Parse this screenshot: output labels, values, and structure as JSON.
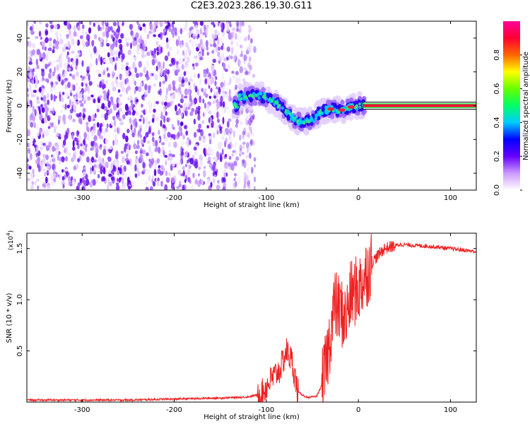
{
  "title": "C2E3.2023.286.19.30.G11",
  "chart_data": [
    {
      "type": "heatmap",
      "name": "spectrogram",
      "xlabel": "Height of straight line (km)",
      "ylabel": "Frequency (Hz)",
      "xlim": [
        -360,
        128
      ],
      "ylim": [
        -50,
        50
      ],
      "xticks": [
        -300,
        -200,
        -100,
        0,
        100
      ],
      "yticks": [
        -40,
        -20,
        0,
        20,
        40
      ],
      "noise_region_x": [
        -360,
        -120
      ],
      "signal_track": [
        {
          "x": -130,
          "y": 5
        },
        {
          "x": -110,
          "y": 6
        },
        {
          "x": -100,
          "y": 5
        },
        {
          "x": -90,
          "y": 2
        },
        {
          "x": -80,
          "y": -3
        },
        {
          "x": -70,
          "y": -8
        },
        {
          "x": -60,
          "y": -10
        },
        {
          "x": -50,
          "y": -8
        },
        {
          "x": -40,
          "y": -3
        },
        {
          "x": -30,
          "y": -2
        },
        {
          "x": -20,
          "y": -3
        },
        {
          "x": -10,
          "y": -1
        },
        {
          "x": 0,
          "y": 0
        },
        {
          "x": 128,
          "y": 0
        }
      ],
      "steady_line_x": [
        5,
        128
      ],
      "steady_line_y": 0,
      "colorbar": {
        "label": "Normalized spectral amplitude",
        "range": [
          0,
          1
        ],
        "ticks": [
          "0.0",
          "0.2",
          "0.4",
          "0.6",
          "0.8"
        ],
        "colors": [
          "#ffffff",
          "#cc99ff",
          "#6600ff",
          "#0000ff",
          "#00ccff",
          "#00ff66",
          "#66ff00",
          "#ffff00",
          "#ff6600",
          "#ff0033",
          "#ff0099"
        ]
      }
    },
    {
      "type": "line",
      "name": "snr",
      "xlabel": "Height of straight line (km)",
      "ylabel": "SNR (10 * v/v)",
      "multiplier": "(x10",
      "multiplier_exp": "4",
      "multiplier_close": ")",
      "xlim": [
        -360,
        128
      ],
      "ylim": [
        0,
        1.65
      ],
      "xticks": [
        -300,
        -200,
        -100,
        0,
        100
      ],
      "yticks": [
        "0.5",
        "1.0",
        "1.5"
      ],
      "color": "#ee2222",
      "points": [
        {
          "x": -360,
          "y": 0.02
        },
        {
          "x": -250,
          "y": 0.02
        },
        {
          "x": -200,
          "y": 0.03
        },
        {
          "x": -150,
          "y": 0.04
        },
        {
          "x": -120,
          "y": 0.05
        },
        {
          "x": -105,
          "y": 0.08
        },
        {
          "x": -95,
          "y": 0.22
        },
        {
          "x": -85,
          "y": 0.32
        },
        {
          "x": -78,
          "y": 0.5
        },
        {
          "x": -72,
          "y": 0.4
        },
        {
          "x": -66,
          "y": 0.1
        },
        {
          "x": -55,
          "y": 0.04
        },
        {
          "x": -45,
          "y": 0.06
        },
        {
          "x": -38,
          "y": 0.2
        },
        {
          "x": -32,
          "y": 0.55
        },
        {
          "x": -26,
          "y": 0.95
        },
        {
          "x": -20,
          "y": 0.9
        },
        {
          "x": -14,
          "y": 0.8
        },
        {
          "x": -8,
          "y": 1.05
        },
        {
          "x": 0,
          "y": 1.1
        },
        {
          "x": 8,
          "y": 1.25
        },
        {
          "x": 16,
          "y": 1.38
        },
        {
          "x": 28,
          "y": 1.5
        },
        {
          "x": 45,
          "y": 1.54
        },
        {
          "x": 80,
          "y": 1.52
        },
        {
          "x": 128,
          "y": 1.47
        }
      ]
    }
  ]
}
